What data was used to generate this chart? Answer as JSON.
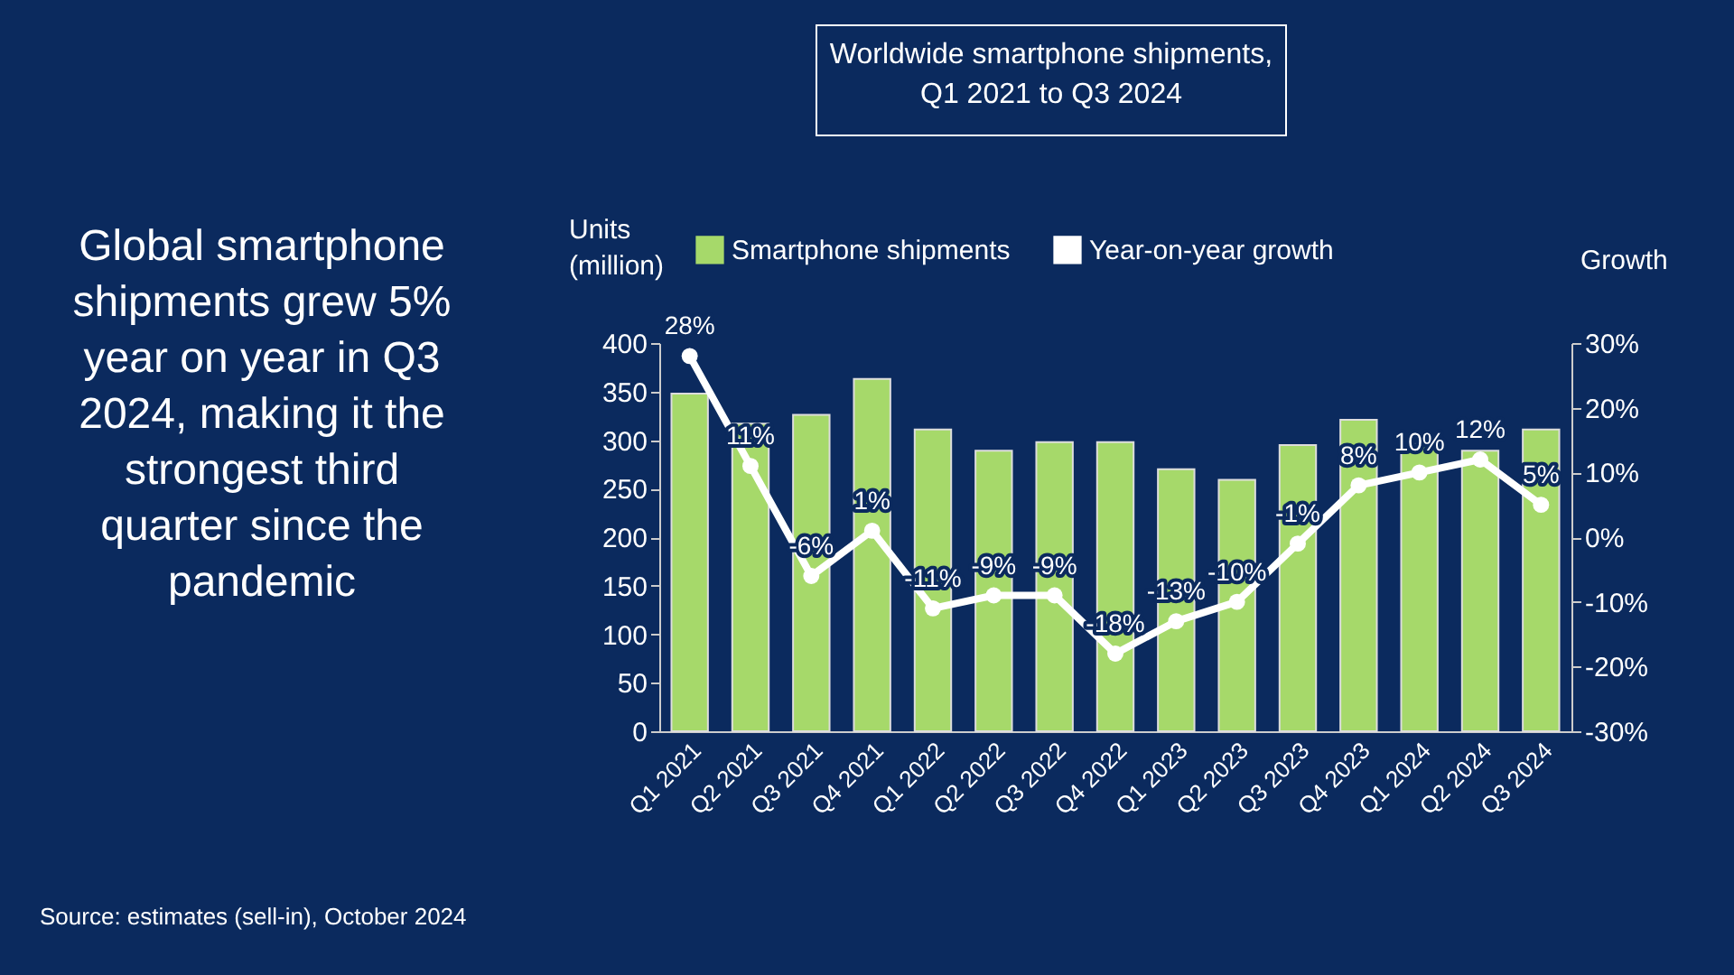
{
  "chart_data": {
    "type": "bar",
    "title": "Worldwide smartphone shipments, Q1 2021 to Q3 2024",
    "ylabel": "Units (million)",
    "y2label": "Growth",
    "categories": [
      "Q1 2021",
      "Q2 2021",
      "Q3 2021",
      "Q4 2021",
      "Q1 2022",
      "Q2 2022",
      "Q3 2022",
      "Q4 2022",
      "Q1 2023",
      "Q2 2023",
      "Q3 2023",
      "Q4 2023",
      "Q1 2024",
      "Q2 2024",
      "Q3 2024"
    ],
    "series": [
      {
        "name": "Smartphone shipments",
        "color": "#a6d96a",
        "values": [
          348,
          317,
          326,
          363,
          311,
          289,
          298,
          298,
          270,
          259,
          295,
          321,
          296,
          289,
          311
        ]
      },
      {
        "name": "Year-on-year growth",
        "type": "line",
        "axis": "y2",
        "color": "#ffffff",
        "marker": "circle",
        "values": [
          28,
          11,
          -6,
          1,
          -11,
          -9,
          -9,
          -18,
          -13,
          -10,
          -1,
          8,
          10,
          12,
          5
        ],
        "value_labels": [
          "28%",
          "11%",
          "-6%",
          "1%",
          "-11%",
          "-9%",
          "-9%",
          "-18%",
          "-13%",
          "-10%",
          "-1%",
          "8%",
          "10%",
          "12%",
          "5%"
        ]
      }
    ],
    "ylim": [
      0,
      400
    ],
    "yticks": [
      0,
      50,
      100,
      150,
      200,
      250,
      300,
      350,
      400
    ],
    "y2lim": [
      -30,
      30
    ],
    "y2ticks": [
      {
        "value": -30,
        "label": "-30%"
      },
      {
        "value": -20,
        "label": "-20%"
      },
      {
        "value": -10,
        "label": "-10%"
      },
      {
        "value": 0,
        "label": "0%"
      },
      {
        "value": 10,
        "label": "10%"
      },
      {
        "value": 20,
        "label": "20%"
      },
      {
        "value": 30,
        "label": "30%"
      }
    ],
    "grid": false,
    "legend": "top",
    "annotations": [
      "Global smartphone shipments grew 5% year on year in Q3 2024, making it the strongest third quarter since the pandemic",
      "Source: estimates (sell-in), October 2024"
    ]
  }
}
